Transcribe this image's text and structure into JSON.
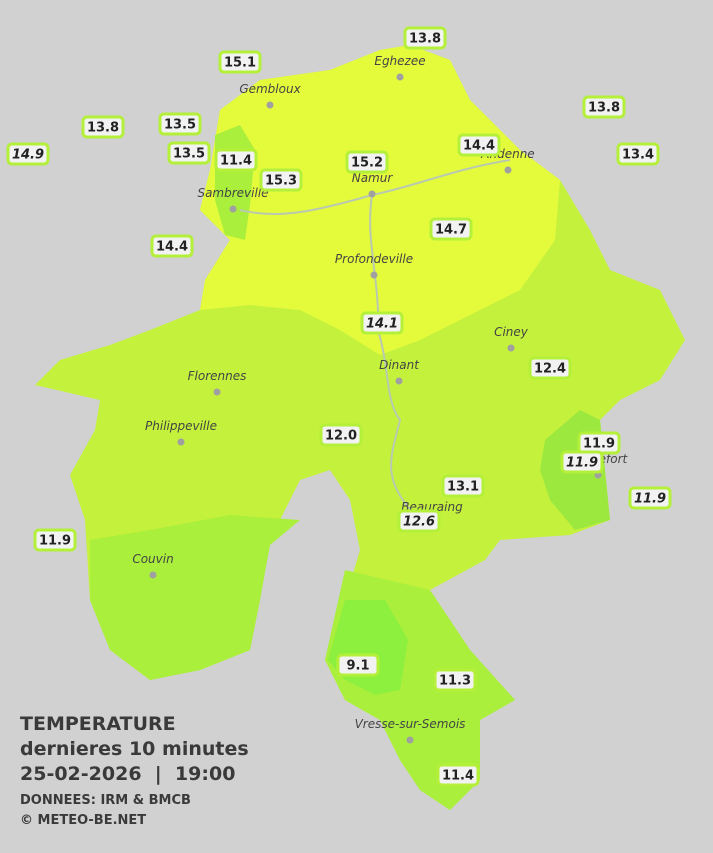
{
  "legend": {
    "title": "TEMPERATURE",
    "subtitle": "dernieres 10 minutes",
    "datetime": "25-02-2026  |  19:00",
    "source": "DONNEES: IRM & BMCB",
    "credit": "© METEO-BE.NET"
  },
  "cities": [
    "Eghezee",
    "Gembloux",
    "Andenne",
    "Namur",
    "Sambreville",
    "Profondeville",
    "Ciney",
    "Dinant",
    "Florennes",
    "Philippeville",
    "Rochefort",
    "Beauraing",
    "Couvin",
    "Vresse-sur-Semois"
  ],
  "readings": [
    {
      "label": "15.1"
    },
    {
      "label": "13.8"
    },
    {
      "label": "13.8"
    },
    {
      "label": "13.8"
    },
    {
      "label": "13.5"
    },
    {
      "label": "13.5"
    },
    {
      "label": "11.4"
    },
    {
      "label": "15.3"
    },
    {
      "label": "15.2"
    },
    {
      "label": "14.4"
    },
    {
      "label": "13.4"
    },
    {
      "label": "14.9",
      "italic": true
    },
    {
      "label": "14.4"
    },
    {
      "label": "14.7"
    },
    {
      "label": "14.1",
      "italic": true
    },
    {
      "label": "12.4"
    },
    {
      "label": "12.0"
    },
    {
      "label": "11.9"
    },
    {
      "label": "11.9",
      "italic": true
    },
    {
      "label": "11.9",
      "italic": true
    },
    {
      "label": "13.1"
    },
    {
      "label": "12.6",
      "italic": true
    },
    {
      "label": "11.9"
    },
    {
      "label": "9.1"
    },
    {
      "label": "11.3"
    },
    {
      "label": "11.4"
    }
  ]
}
